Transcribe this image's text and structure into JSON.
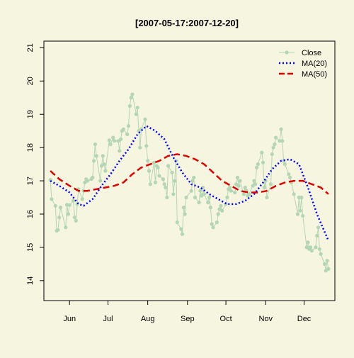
{
  "chart_data": {
    "type": "line",
    "title": "[2007-05-17:2007-12-20]",
    "xlabel": "",
    "ylabel": "",
    "xlim": [
      "2007-05-12",
      "2007-12-25"
    ],
    "ylim": [
      13.4,
      21.2
    ],
    "y_ticks": [
      14,
      15,
      16,
      17,
      18,
      19,
      20,
      21
    ],
    "x_ticks": [
      {
        "date": "2007-06-01",
        "label": "Jun"
      },
      {
        "date": "2007-07-01",
        "label": "Jul"
      },
      {
        "date": "2007-08-01",
        "label": "Aug"
      },
      {
        "date": "2007-09-01",
        "label": "Sep"
      },
      {
        "date": "2007-10-01",
        "label": "Oct"
      },
      {
        "date": "2007-11-01",
        "label": "Nov"
      },
      {
        "date": "2007-12-01",
        "label": "Dec"
      }
    ],
    "grid": false,
    "legend_position": "top-right",
    "series": [
      {
        "name": "Close",
        "color": "#b5d6b2",
        "style": "line-with-points",
        "points": [
          [
            "2007-05-17",
            17.03
          ],
          [
            "2007-05-18",
            16.45
          ],
          [
            "2007-05-21",
            16.25
          ],
          [
            "2007-05-22",
            15.5
          ],
          [
            "2007-05-23",
            15.52
          ],
          [
            "2007-05-24",
            15.9
          ],
          [
            "2007-05-25",
            16.2
          ],
          [
            "2007-05-29",
            15.6
          ],
          [
            "2007-05-30",
            16.28
          ],
          [
            "2007-05-31",
            16.0
          ],
          [
            "2007-06-01",
            16.27
          ],
          [
            "2007-06-04",
            16.4
          ],
          [
            "2007-06-05",
            15.9
          ],
          [
            "2007-06-06",
            15.8
          ],
          [
            "2007-06-07",
            16.3
          ],
          [
            "2007-06-08",
            16.75
          ],
          [
            "2007-06-11",
            16.45
          ],
          [
            "2007-06-12",
            16.7
          ],
          [
            "2007-06-13",
            16.95
          ],
          [
            "2007-06-14",
            17.05
          ],
          [
            "2007-06-15",
            17.0
          ],
          [
            "2007-06-18",
            17.05
          ],
          [
            "2007-06-19",
            17.1
          ],
          [
            "2007-06-20",
            17.6
          ],
          [
            "2007-06-21",
            18.1
          ],
          [
            "2007-06-22",
            17.75
          ],
          [
            "2007-06-25",
            17.0
          ],
          [
            "2007-06-26",
            17.45
          ],
          [
            "2007-06-27",
            17.75
          ],
          [
            "2007-06-28",
            17.5
          ],
          [
            "2007-06-29",
            17.3
          ],
          [
            "2007-07-02",
            18.22
          ],
          [
            "2007-07-03",
            18.1
          ],
          [
            "2007-07-05",
            18.3
          ],
          [
            "2007-07-06",
            18.2
          ],
          [
            "2007-07-09",
            18.2
          ],
          [
            "2007-07-10",
            17.9
          ],
          [
            "2007-07-11",
            18.25
          ],
          [
            "2007-07-12",
            18.5
          ],
          [
            "2007-07-13",
            18.55
          ],
          [
            "2007-07-16",
            18.4
          ],
          [
            "2007-07-17",
            18.65
          ],
          [
            "2007-07-18",
            19.25
          ],
          [
            "2007-07-19",
            19.5
          ],
          [
            "2007-07-20",
            19.6
          ],
          [
            "2007-07-23",
            19.0
          ],
          [
            "2007-07-24",
            19.2
          ],
          [
            "2007-07-25",
            18.5
          ],
          [
            "2007-07-26",
            18.0
          ],
          [
            "2007-07-27",
            18.55
          ],
          [
            "2007-07-30",
            18.85
          ],
          [
            "2007-07-31",
            18.05
          ],
          [
            "2007-08-01",
            17.6
          ],
          [
            "2007-08-02",
            17.3
          ],
          [
            "2007-08-03",
            16.9
          ],
          [
            "2007-08-06",
            17.55
          ],
          [
            "2007-08-07",
            16.95
          ],
          [
            "2007-08-08",
            17.45
          ],
          [
            "2007-08-09",
            17.4
          ],
          [
            "2007-08-10",
            17.15
          ],
          [
            "2007-08-13",
            17.05
          ],
          [
            "2007-08-14",
            16.9
          ],
          [
            "2007-08-15",
            16.8
          ],
          [
            "2007-08-16",
            16.5
          ],
          [
            "2007-08-17",
            17.45
          ],
          [
            "2007-08-20",
            17.25
          ],
          [
            "2007-08-21",
            16.6
          ],
          [
            "2007-08-22",
            17.0
          ],
          [
            "2007-08-23",
            17.6
          ],
          [
            "2007-08-24",
            15.75
          ],
          [
            "2007-08-27",
            15.55
          ],
          [
            "2007-08-28",
            15.4
          ],
          [
            "2007-08-29",
            16.2
          ],
          [
            "2007-08-30",
            16.0
          ],
          [
            "2007-08-31",
            16.5
          ],
          [
            "2007-09-04",
            16.7
          ],
          [
            "2007-09-05",
            17.0
          ],
          [
            "2007-09-06",
            17.1
          ],
          [
            "2007-09-07",
            16.5
          ],
          [
            "2007-09-10",
            16.35
          ],
          [
            "2007-09-11",
            16.7
          ],
          [
            "2007-09-12",
            16.55
          ],
          [
            "2007-09-13",
            16.8
          ],
          [
            "2007-09-14",
            16.6
          ],
          [
            "2007-09-17",
            16.35
          ],
          [
            "2007-09-18",
            16.5
          ],
          [
            "2007-09-19",
            16.2
          ],
          [
            "2007-09-20",
            15.7
          ],
          [
            "2007-09-21",
            15.6
          ],
          [
            "2007-09-24",
            15.75
          ],
          [
            "2007-09-25",
            16.0
          ],
          [
            "2007-09-26",
            16.15
          ],
          [
            "2007-09-27",
            16.25
          ],
          [
            "2007-09-28",
            16.1
          ],
          [
            "2007-10-01",
            16.3
          ],
          [
            "2007-10-02",
            16.5
          ],
          [
            "2007-10-03",
            16.75
          ],
          [
            "2007-10-04",
            16.8
          ],
          [
            "2007-10-05",
            16.7
          ],
          [
            "2007-10-08",
            16.65
          ],
          [
            "2007-10-09",
            16.9
          ],
          [
            "2007-10-10",
            17.1
          ],
          [
            "2007-10-11",
            16.85
          ],
          [
            "2007-10-12",
            17.0
          ],
          [
            "2007-10-15",
            16.6
          ],
          [
            "2007-10-16",
            16.8
          ],
          [
            "2007-10-17",
            16.7
          ],
          [
            "2007-10-18",
            16.55
          ],
          [
            "2007-10-19",
            16.6
          ],
          [
            "2007-10-22",
            16.85
          ],
          [
            "2007-10-23",
            17.0
          ],
          [
            "2007-10-24",
            16.9
          ],
          [
            "2007-10-25",
            17.4
          ],
          [
            "2007-10-26",
            17.5
          ],
          [
            "2007-10-29",
            17.85
          ],
          [
            "2007-10-30",
            17.55
          ],
          [
            "2007-10-31",
            16.8
          ],
          [
            "2007-11-01",
            17.0
          ],
          [
            "2007-11-02",
            16.5
          ],
          [
            "2007-11-05",
            16.9
          ],
          [
            "2007-11-06",
            17.8
          ],
          [
            "2007-11-07",
            18.0
          ],
          [
            "2007-11-08",
            18.1
          ],
          [
            "2007-11-09",
            18.3
          ],
          [
            "2007-11-12",
            18.2
          ],
          [
            "2007-11-13",
            18.55
          ],
          [
            "2007-11-14",
            18.2
          ],
          [
            "2007-11-15",
            17.6
          ],
          [
            "2007-11-16",
            17.5
          ],
          [
            "2007-11-19",
            17.2
          ],
          [
            "2007-11-20",
            17.1
          ],
          [
            "2007-11-21",
            16.95
          ],
          [
            "2007-11-23",
            16.6
          ],
          [
            "2007-11-26",
            16.0
          ],
          [
            "2007-11-27",
            16.5
          ],
          [
            "2007-11-28",
            16.1
          ],
          [
            "2007-11-29",
            16.5
          ],
          [
            "2007-11-30",
            15.95
          ],
          [
            "2007-12-03",
            15.0
          ],
          [
            "2007-12-04",
            15.15
          ],
          [
            "2007-12-05",
            14.95
          ],
          [
            "2007-12-06",
            15.0
          ],
          [
            "2007-12-07",
            14.9
          ],
          [
            "2007-12-10",
            15.0
          ],
          [
            "2007-12-11",
            15.35
          ],
          [
            "2007-12-12",
            15.6
          ],
          [
            "2007-12-13",
            14.95
          ],
          [
            "2007-12-14",
            14.8
          ],
          [
            "2007-12-17",
            14.5
          ],
          [
            "2007-12-18",
            14.3
          ],
          [
            "2007-12-19",
            14.6
          ],
          [
            "2007-12-20",
            14.35
          ]
        ]
      },
      {
        "name": "MA(20)",
        "color": "#0000ff",
        "style": "dotted",
        "points": [
          [
            "2007-05-17",
            17.0
          ],
          [
            "2007-05-24",
            16.85
          ],
          [
            "2007-06-01",
            16.65
          ],
          [
            "2007-06-08",
            16.3
          ],
          [
            "2007-06-12",
            16.25
          ],
          [
            "2007-06-19",
            16.45
          ],
          [
            "2007-06-26",
            16.85
          ],
          [
            "2007-07-03",
            17.2
          ],
          [
            "2007-07-10",
            17.6
          ],
          [
            "2007-07-17",
            17.95
          ],
          [
            "2007-07-24",
            18.4
          ],
          [
            "2007-07-31",
            18.65
          ],
          [
            "2007-08-07",
            18.5
          ],
          [
            "2007-08-14",
            18.25
          ],
          [
            "2007-08-21",
            17.7
          ],
          [
            "2007-08-28",
            17.25
          ],
          [
            "2007-09-04",
            16.9
          ],
          [
            "2007-09-11",
            16.8
          ],
          [
            "2007-09-18",
            16.6
          ],
          [
            "2007-09-25",
            16.45
          ],
          [
            "2007-10-02",
            16.3
          ],
          [
            "2007-10-09",
            16.3
          ],
          [
            "2007-10-16",
            16.4
          ],
          [
            "2007-10-23",
            16.6
          ],
          [
            "2007-10-30",
            16.95
          ],
          [
            "2007-11-06",
            17.35
          ],
          [
            "2007-11-13",
            17.6
          ],
          [
            "2007-11-20",
            17.65
          ],
          [
            "2007-11-27",
            17.5
          ],
          [
            "2007-12-04",
            16.8
          ],
          [
            "2007-12-11",
            16.0
          ],
          [
            "2007-12-20",
            15.2
          ]
        ]
      },
      {
        "name": "MA(50)",
        "color": "#dd0000",
        "style": "dashed",
        "points": [
          [
            "2007-05-17",
            17.3
          ],
          [
            "2007-05-24",
            17.05
          ],
          [
            "2007-06-01",
            16.85
          ],
          [
            "2007-06-08",
            16.7
          ],
          [
            "2007-06-15",
            16.7
          ],
          [
            "2007-06-22",
            16.75
          ],
          [
            "2007-06-29",
            16.8
          ],
          [
            "2007-07-06",
            16.85
          ],
          [
            "2007-07-13",
            16.95
          ],
          [
            "2007-07-20",
            17.2
          ],
          [
            "2007-07-27",
            17.4
          ],
          [
            "2007-08-03",
            17.5
          ],
          [
            "2007-08-10",
            17.6
          ],
          [
            "2007-08-17",
            17.75
          ],
          [
            "2007-08-24",
            17.8
          ],
          [
            "2007-08-31",
            17.75
          ],
          [
            "2007-09-07",
            17.65
          ],
          [
            "2007-09-14",
            17.5
          ],
          [
            "2007-09-21",
            17.25
          ],
          [
            "2007-09-28",
            17.0
          ],
          [
            "2007-10-05",
            16.85
          ],
          [
            "2007-10-12",
            16.7
          ],
          [
            "2007-10-19",
            16.65
          ],
          [
            "2007-10-26",
            16.65
          ],
          [
            "2007-11-02",
            16.7
          ],
          [
            "2007-11-09",
            16.85
          ],
          [
            "2007-11-16",
            16.95
          ],
          [
            "2007-11-23",
            17.0
          ],
          [
            "2007-11-30",
            17.0
          ],
          [
            "2007-12-07",
            16.9
          ],
          [
            "2007-12-14",
            16.8
          ],
          [
            "2007-12-20",
            16.6
          ]
        ]
      }
    ]
  }
}
